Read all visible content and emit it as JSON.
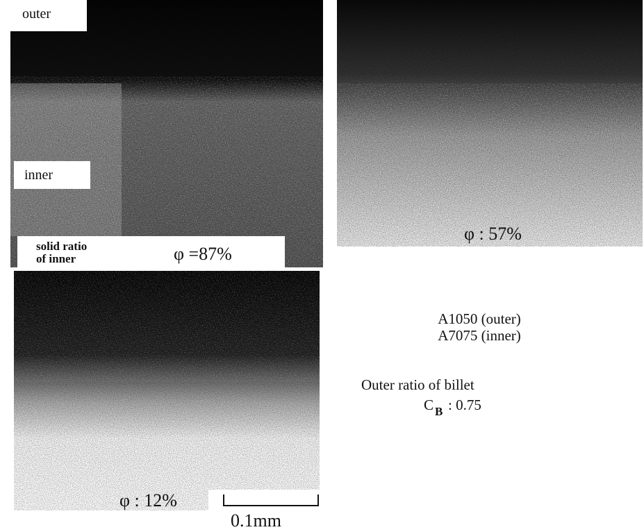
{
  "panels": [
    {
      "outer_label": "outer",
      "inner_label": "inner",
      "solid_ratio_label": [
        "solid ratio",
        "of inner"
      ],
      "phi": "φ =87%"
    },
    {
      "phi": "φ : 57%"
    },
    {
      "phi": "φ : 12%",
      "scale_bar": "0.1mm"
    }
  ],
  "legend": {
    "materials": [
      "A1050  (outer)",
      "A7075 (inner)"
    ],
    "billet_label": "Outer ratio of billet",
    "symbol": "C",
    "subscript": "B",
    "billet_value": ": 0.75"
  }
}
